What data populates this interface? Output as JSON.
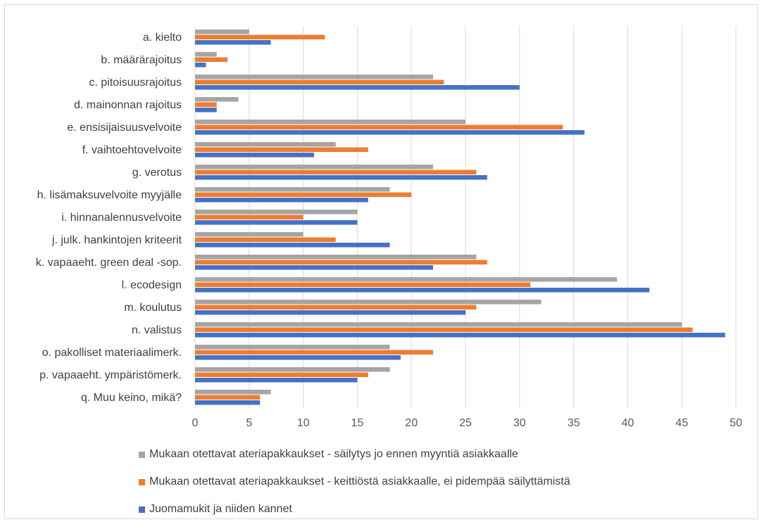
{
  "chart_data": {
    "type": "bar",
    "orientation": "horizontal",
    "categories": [
      "a. kielto",
      "b. määrärajoitus",
      "c. pitoisuusrajoitus",
      "d. mainonnan rajoitus",
      "e. ensisijaisuusvelvoite",
      "f. vaihtoehtovelvoite",
      "g. verotus",
      "h. lisämaksuvelvoite myyjälle",
      "i. hinnanalennusvelvoite",
      "j. julk. hankintojen kriteerit",
      "k. vapaaeht. green deal -sop.",
      "l. ecodesign",
      "m. koulutus",
      "n. valistus",
      "o. pakolliset materiaalimerk.",
      "p. vapaaeht. ympäristömerk.",
      "q. Muu keino, mikä?"
    ],
    "series": [
      {
        "name": "Mukaan otettavat ateriapakkaukset - säilytys jo ennen myyntiä asiakkaalle",
        "color": "#a5a5a5",
        "values": [
          5,
          2,
          22,
          4,
          25,
          13,
          22,
          18,
          15,
          10,
          26,
          39,
          32,
          45,
          18,
          18,
          7
        ]
      },
      {
        "name": "Mukaan otettavat ateriapakkaukset - keittiöstä asiakkaalle, ei pidempää säilyttämistä",
        "color": "#ed7d31",
        "values": [
          12,
          3,
          23,
          2,
          34,
          16,
          26,
          20,
          10,
          13,
          27,
          31,
          26,
          46,
          22,
          16,
          6
        ]
      },
      {
        "name": "Juomamukit ja niiden kannet",
        "color": "#4472c4",
        "values": [
          7,
          1,
          30,
          2,
          36,
          11,
          27,
          16,
          15,
          18,
          22,
          42,
          25,
          49,
          19,
          15,
          6
        ]
      }
    ],
    "x_ticks": [
      "0",
      "5",
      "10",
      "15",
      "20",
      "25",
      "30",
      "35",
      "40",
      "45",
      "50"
    ],
    "xlim": [
      0,
      50
    ],
    "grid": true,
    "legend_position": "bottom"
  }
}
